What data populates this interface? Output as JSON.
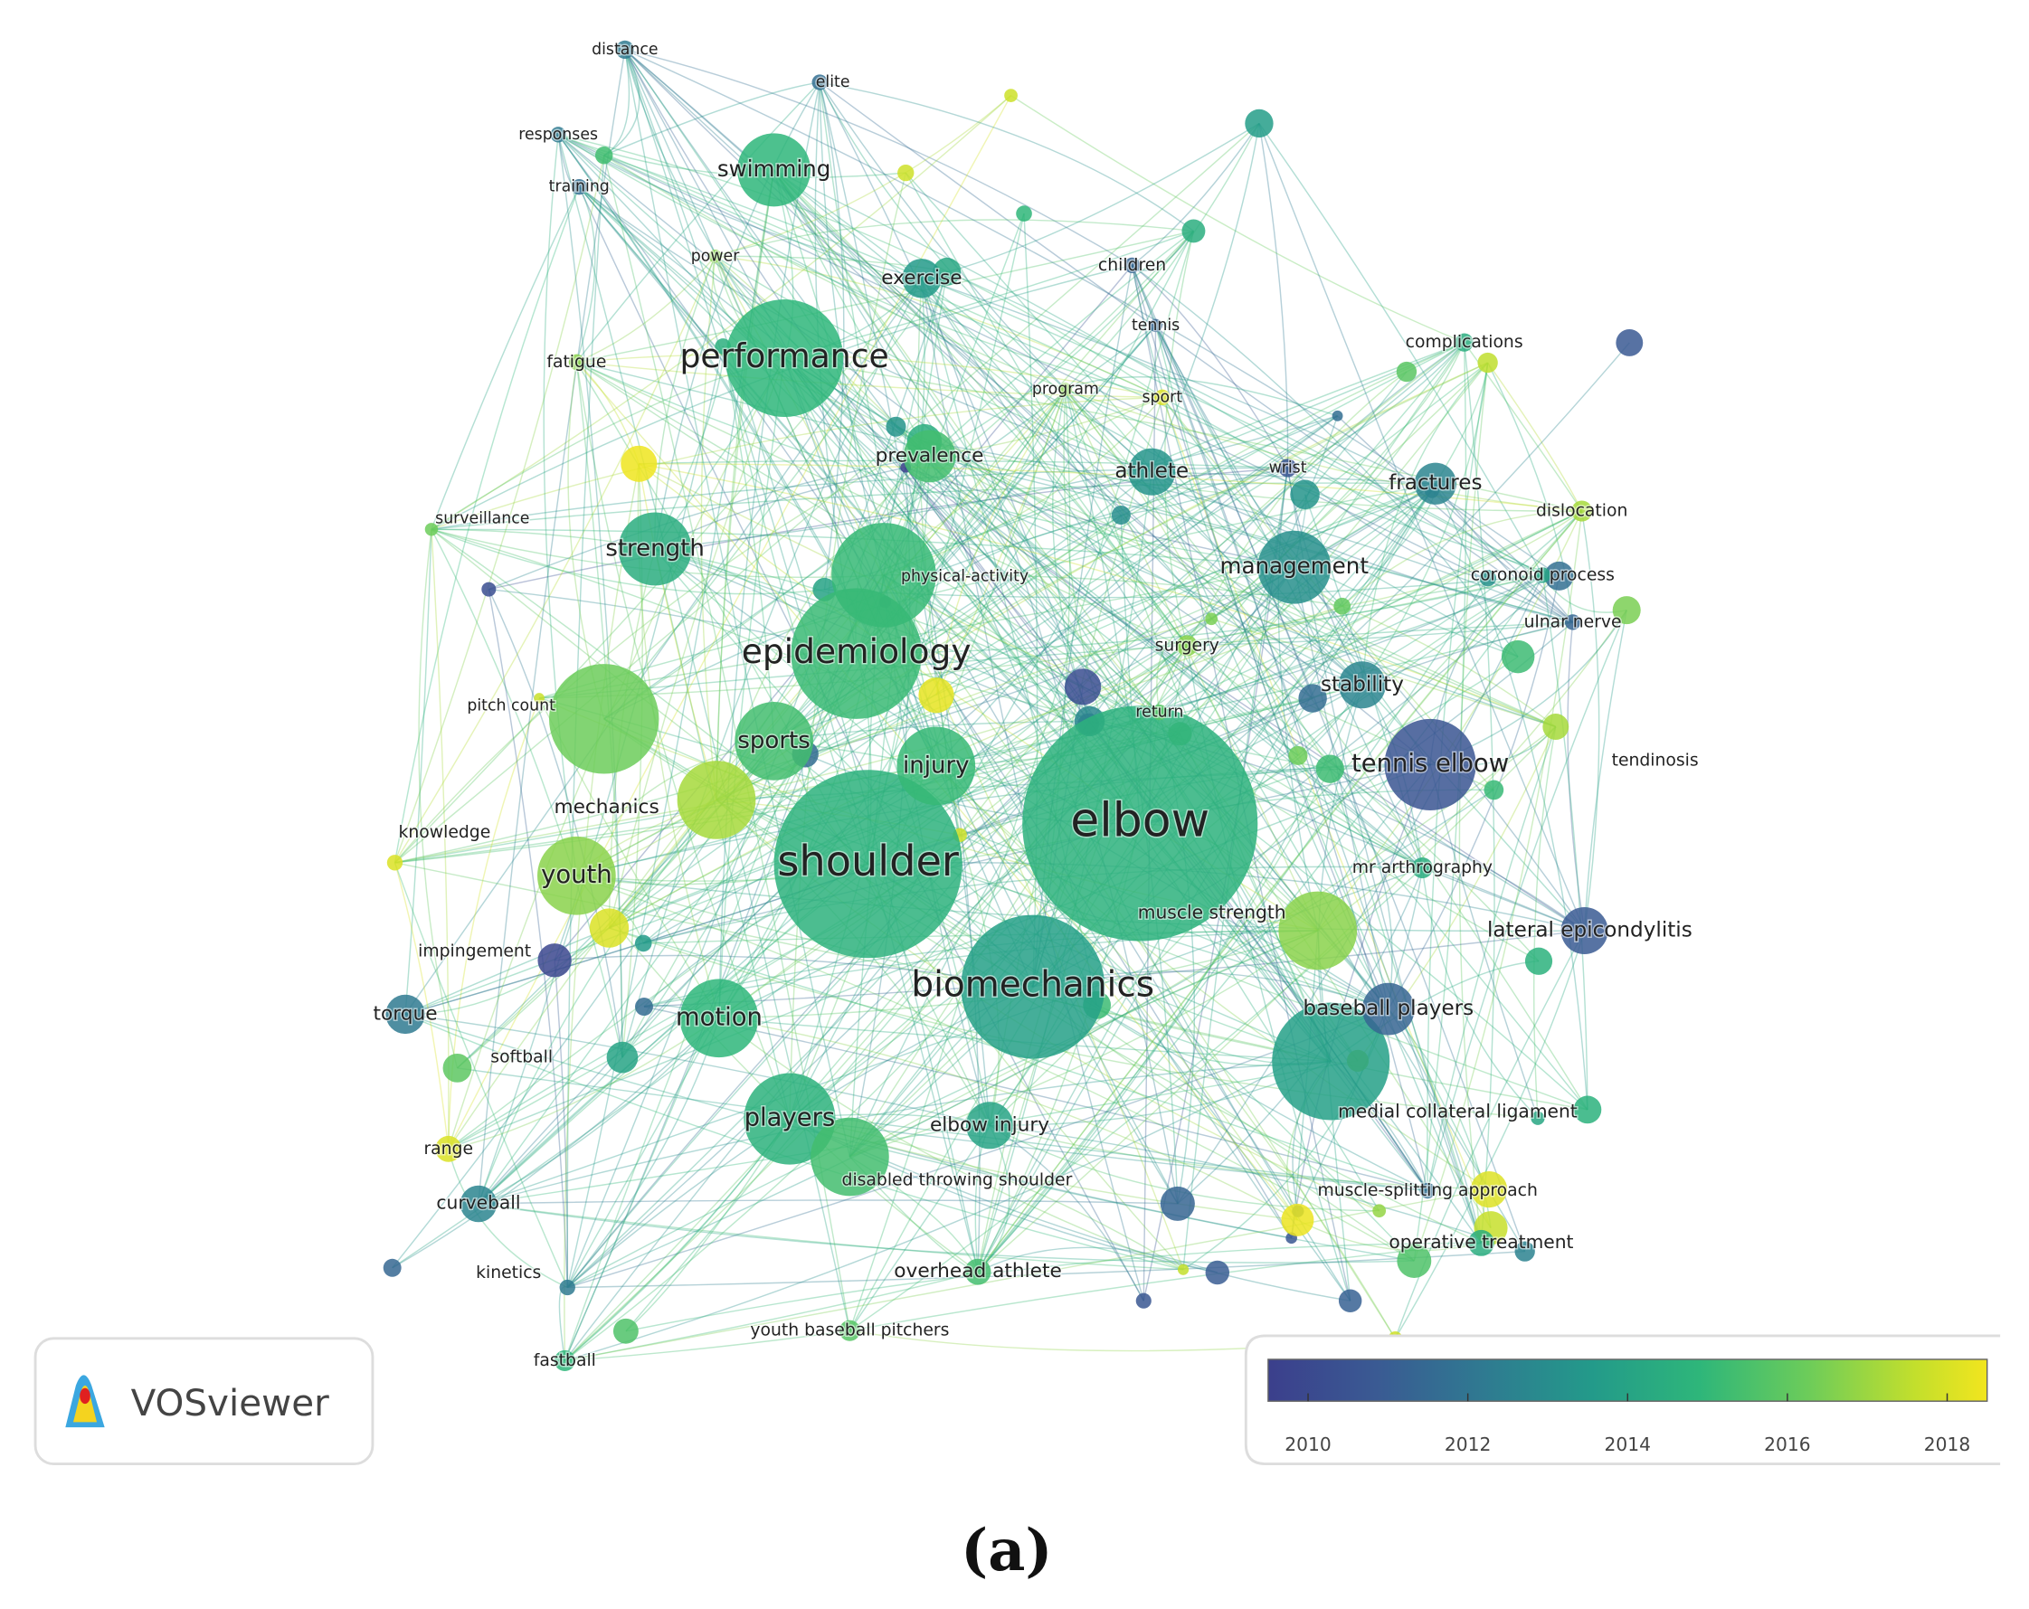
{
  "nodes": [
    "distance",
    "elite",
    "responses",
    "training",
    "swimming",
    "power",
    "exercise",
    "children",
    "tennis",
    "complications",
    "performance",
    "fatigue",
    "program",
    "sport",
    "prevalence",
    "athlete",
    "wrist",
    "fractures",
    "dislocation",
    "surveillance",
    "strength",
    "management",
    "physical-activity",
    "coronoid process",
    "ulnar nerve",
    "epidemiology",
    "surgery",
    "stability",
    "pitch count",
    "return",
    "sports",
    "tennis elbow",
    "tendinosis",
    "injury",
    "elbow",
    "knowledge",
    "mechanics",
    "shoulder",
    "mr arthrography",
    "youth",
    "muscle strength",
    "lateral epicondylitis",
    "impingement",
    "biomechanics",
    "baseball players",
    "torque",
    "motion",
    "softball",
    "players",
    "elbow injury",
    "medial collateral ligament",
    "range",
    "disabled throwing shoulder",
    "muscle-splitting approach",
    "curveball",
    "operative treatment",
    "kinetics",
    "overhead athlete",
    "fastball",
    "youth baseball pitchers"
  ],
  "logo": {
    "text": "VOSviewer"
  },
  "legend": {
    "range": [
      2009.5,
      2018.5
    ],
    "ticks": [
      2010,
      2012,
      2014,
      2016,
      2018
    ]
  },
  "caption": "(a)"
}
